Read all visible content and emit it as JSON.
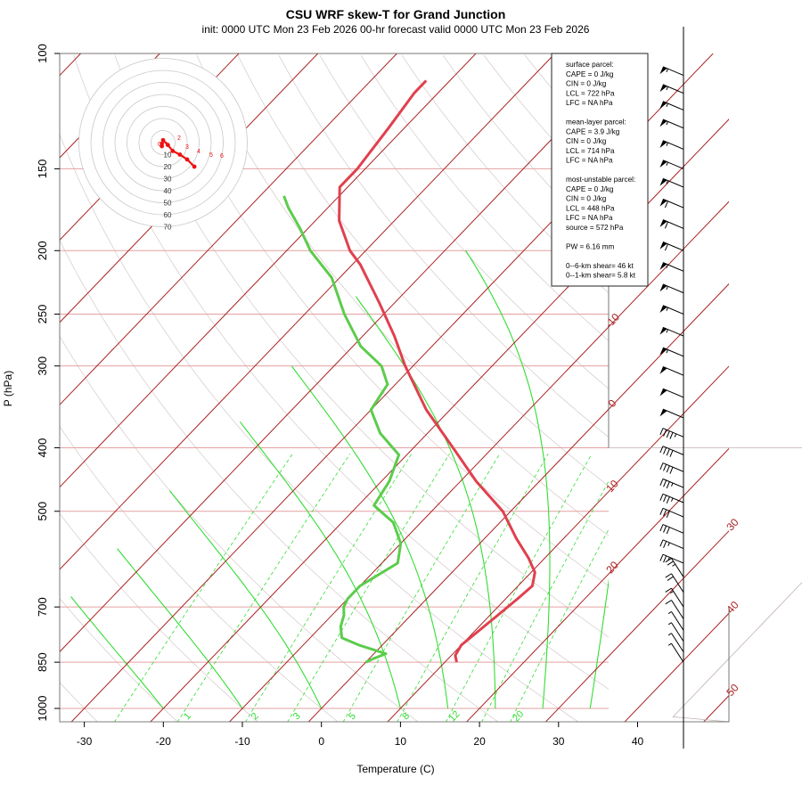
{
  "title": "CSU WRF skew-T for Grand Junction",
  "subtitle": "init: 0000 UTC Mon 23 Feb 2026     00-hr forecast valid 0000 UTC Mon 23 Feb 2026",
  "colors": {
    "temperature": "#e0404e",
    "dewpoint": "#5ccc4c",
    "isotherm": "#aa2222",
    "mixing_ratio": "#33dd33",
    "isobar": "#e4a0a0",
    "hodograph": "#ee1111"
  },
  "stats_lines": [
    "surface parcel:",
    "CAPE = 0 J/kg",
    "CIN = 0 J/kg",
    "LCL = 722 hPa",
    "LFC = NA hPa",
    "",
    "mean-layer parcel:",
    "CAPE = 3.9 J/kg",
    "CIN = 0 J/kg",
    "LCL = 714 hPa",
    "LFC = NA hPa",
    "",
    "most-unstable parcel:",
    "CAPE = 0 J/kg",
    "CIN = 0 J/kg",
    "LCL = 448 hPa",
    "LFC = NA hPa",
    "source = 572 hPa",
    "",
    "PW =  6.16 mm",
    "",
    "0--6-km shear= 46 kt",
    "0--1-km shear= 5.8 kt"
  ],
  "hodograph": {
    "ring_labels": [
      "10",
      "20",
      "30",
      "40",
      "50",
      "60",
      "70"
    ],
    "height_labels": [
      "0",
      "1",
      "2",
      "3",
      "4",
      "5",
      "6"
    ],
    "points_kt": [
      [
        -1,
        -3
      ],
      [
        -1,
        -1
      ],
      [
        0,
        2
      ],
      [
        4,
        -2
      ],
      [
        8,
        -7
      ],
      [
        14,
        -10
      ],
      [
        20,
        -14
      ],
      [
        26,
        -20
      ]
    ]
  },
  "chart_data": {
    "type": "skew-t",
    "title": "CSU WRF skew-T for Grand Junction",
    "subtitle": "init: 0000 UTC Mon 23 Feb 2026     00-hr forecast valid 0000 UTC Mon 23 Feb 2026",
    "xlabel": "Temperature (C)",
    "ylabel": "P (hPa)",
    "xlim": [
      -33,
      45
    ],
    "ylim": [
      1050,
      100
    ],
    "log_pressure_axis": true,
    "x_ticks": [
      -30,
      -20,
      -10,
      0,
      10,
      20,
      30,
      40
    ],
    "y_ticks": [
      100,
      150,
      200,
      250,
      300,
      400,
      500,
      700,
      850,
      1000
    ],
    "isobars": [
      100,
      150,
      200,
      250,
      300,
      400,
      500,
      700,
      850,
      1000
    ],
    "isotherm_labels": [
      -10,
      0,
      10,
      20,
      30,
      40,
      50
    ],
    "mixing_ratio_labels": [
      "1",
      "2",
      "3",
      "5",
      "8",
      "12",
      "20"
    ],
    "mixing_ratio_gkg": [
      1,
      2,
      3,
      5,
      8,
      12,
      20
    ],
    "mixing_ratio_curves_gkg": [
      0.5,
      1,
      2,
      3,
      5,
      8,
      12,
      16,
      20
    ],
    "series": [
      {
        "name": "temperature",
        "pressure_hpa": [
          850,
          830,
          800,
          760,
          720,
          680,
          650,
          620,
          590,
          550,
          500,
          450,
          400,
          350,
          300,
          270,
          240,
          210,
          200,
          180,
          160,
          150,
          130,
          115,
          110
        ],
        "temp_c": [
          11.5,
          10.5,
          10.0,
          10.5,
          11.0,
          11.5,
          11.8,
          10.5,
          8.0,
          4.0,
          -1.0,
          -8.0,
          -15.0,
          -23.0,
          -31.0,
          -36.0,
          -42.0,
          -49.0,
          -52.0,
          -57.0,
          -61.0,
          -61.0,
          -62.0,
          -63.0,
          -63.0
        ]
      },
      {
        "name": "dewpoint",
        "pressure_hpa": [
          850,
          840,
          825,
          800,
          780,
          750,
          720,
          700,
          680,
          650,
          600,
          560,
          520,
          490,
          450,
          410,
          380,
          350,
          320,
          300,
          280,
          250,
          220,
          200,
          185,
          172,
          165
        ],
        "dew_c": [
          0.0,
          0.5,
          1.5,
          -3.0,
          -6.0,
          -7.5,
          -8.5,
          -9.5,
          -10.0,
          -10.0,
          -8.0,
          -10.0,
          -13.5,
          -18.0,
          -19.0,
          -21.0,
          -26.0,
          -30.0,
          -31.0,
          -34.0,
          -39.0,
          -45.0,
          -51.0,
          -57.0,
          -61.0,
          -65.0,
          -67.0
        ]
      }
    ],
    "wind_barbs": [
      {
        "pressure_hpa": 850,
        "speed_kt": 5
      },
      {
        "pressure_hpa": 820,
        "speed_kt": 5
      },
      {
        "pressure_hpa": 790,
        "speed_kt": 5
      },
      {
        "pressure_hpa": 760,
        "speed_kt": 5
      },
      {
        "pressure_hpa": 730,
        "speed_kt": 10
      },
      {
        "pressure_hpa": 700,
        "speed_kt": 15
      },
      {
        "pressure_hpa": 665,
        "speed_kt": 20
      },
      {
        "pressure_hpa": 630,
        "speed_kt": 25
      },
      {
        "pressure_hpa": 600,
        "speed_kt": 25
      },
      {
        "pressure_hpa": 570,
        "speed_kt": 25
      },
      {
        "pressure_hpa": 540,
        "speed_kt": 30
      },
      {
        "pressure_hpa": 510,
        "speed_kt": 30
      },
      {
        "pressure_hpa": 485,
        "speed_kt": 35
      },
      {
        "pressure_hpa": 460,
        "speed_kt": 35
      },
      {
        "pressure_hpa": 435,
        "speed_kt": 40
      },
      {
        "pressure_hpa": 410,
        "speed_kt": 40
      },
      {
        "pressure_hpa": 385,
        "speed_kt": 45
      },
      {
        "pressure_hpa": 360,
        "speed_kt": 50
      },
      {
        "pressure_hpa": 335,
        "speed_kt": 50
      },
      {
        "pressure_hpa": 310,
        "speed_kt": 50
      },
      {
        "pressure_hpa": 290,
        "speed_kt": 55
      },
      {
        "pressure_hpa": 270,
        "speed_kt": 55
      },
      {
        "pressure_hpa": 250,
        "speed_kt": 55
      },
      {
        "pressure_hpa": 232,
        "speed_kt": 55
      },
      {
        "pressure_hpa": 215,
        "speed_kt": 55
      },
      {
        "pressure_hpa": 200,
        "speed_kt": 60
      },
      {
        "pressure_hpa": 185,
        "speed_kt": 60
      },
      {
        "pressure_hpa": 172,
        "speed_kt": 60
      },
      {
        "pressure_hpa": 160,
        "speed_kt": 55
      },
      {
        "pressure_hpa": 150,
        "speed_kt": 55
      },
      {
        "pressure_hpa": 140,
        "speed_kt": 55
      },
      {
        "pressure_hpa": 130,
        "speed_kt": 55
      },
      {
        "pressure_hpa": 122,
        "speed_kt": 55
      },
      {
        "pressure_hpa": 115,
        "speed_kt": 55
      },
      {
        "pressure_hpa": 108,
        "speed_kt": 55
      }
    ]
  }
}
